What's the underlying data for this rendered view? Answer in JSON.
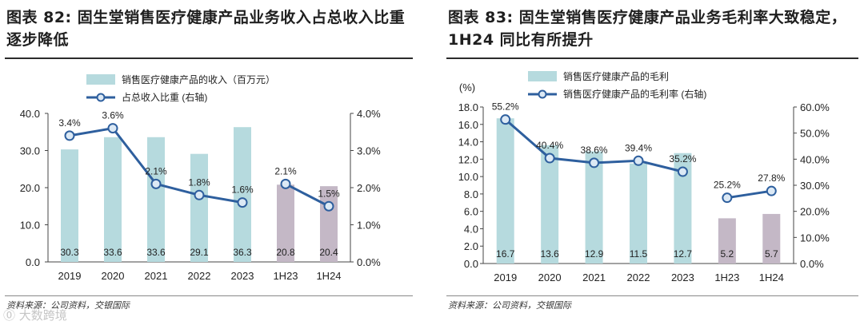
{
  "watermark": "⓪ 大数跨境",
  "chart_data": [
    {
      "type": "bar",
      "title": "图表 82: 固生堂销售医疗健康产品业务收入占总收入比重逐步降低",
      "source": "资料来源：公司资料，交银国际",
      "categories": [
        "2019",
        "2020",
        "2021",
        "2022",
        "2023",
        "1H23",
        "1H24"
      ],
      "series": [
        {
          "name": "销售医疗健康产品的收入（百万元）",
          "kind": "bar",
          "axis": "left",
          "values": [
            30.3,
            33.6,
            33.6,
            29.1,
            36.3,
            20.8,
            20.4
          ],
          "value_labels": [
            "30.3",
            "33.6",
            "33.6",
            "29.1",
            "36.3",
            "20.8",
            "20.4"
          ]
        },
        {
          "name": "占总收入比重 (右轴)",
          "kind": "line",
          "axis": "right",
          "values": [
            3.4,
            3.6,
            2.1,
            1.8,
            1.6,
            2.1,
            1.5
          ],
          "value_labels": [
            "3.4%",
            "3.6%",
            "2.1%",
            "1.8%",
            "1.6%",
            "2.1%",
            "1.5%"
          ],
          "segments": [
            [
              0,
              4
            ],
            [
              5,
              6
            ]
          ]
        }
      ],
      "left_axis": {
        "min": 0,
        "max": 40,
        "ticks": [
          "0.0",
          "10.0",
          "20.0",
          "30.0",
          "40.0"
        ],
        "unit_label": ""
      },
      "right_axis": {
        "min": 0,
        "max": 4,
        "ticks": [
          "0.0%",
          "1.0%",
          "2.0%",
          "3.0%",
          "4.0%"
        ]
      },
      "colors": {
        "bar": "#b6dade",
        "bar_half": "#c4b8c6",
        "line": "#2e5f9e",
        "marker_fill": "#dce9f5"
      }
    },
    {
      "type": "bar",
      "title": "图表 83: 固生堂销售医疗健康产品业务毛利率大致稳定，1H24 同比有所提升",
      "source": "资料来源：公司资料，交银国际",
      "categories": [
        "2019",
        "2020",
        "2021",
        "2022",
        "2023",
        "1H23",
        "1H24"
      ],
      "series": [
        {
          "name": "销售医疗健康产品的毛利",
          "kind": "bar",
          "axis": "left",
          "values": [
            16.7,
            13.6,
            12.9,
            11.5,
            12.7,
            5.2,
            5.7
          ],
          "value_labels": [
            "16.7",
            "13.6",
            "12.9",
            "11.5",
            "12.7",
            "5.2",
            "5.7"
          ]
        },
        {
          "name": "销售医疗健康产品的毛利率 (右轴)",
          "kind": "line",
          "axis": "right",
          "values": [
            55.2,
            40.4,
            38.6,
            39.4,
            35.2,
            25.2,
            27.8
          ],
          "value_labels": [
            "55.2%",
            "40.4%",
            "38.6%",
            "39.4%",
            "35.2%",
            "25.2%",
            "27.8%"
          ],
          "segments": [
            [
              0,
              4
            ],
            [
              5,
              6
            ]
          ]
        }
      ],
      "left_axis": {
        "min": 0,
        "max": 18,
        "ticks": [
          "0.0",
          "2.0",
          "4.0",
          "6.0",
          "8.0",
          "10.0",
          "12.0",
          "14.0",
          "16.0",
          "18.0"
        ],
        "unit_label": "(%)"
      },
      "right_axis": {
        "min": 0,
        "max": 60,
        "ticks": [
          "0.0%",
          "10.0%",
          "20.0%",
          "30.0%",
          "40.0%",
          "50.0%",
          "60.0%"
        ]
      },
      "colors": {
        "bar": "#b6dade",
        "bar_half": "#c4b8c6",
        "line": "#2e5f9e",
        "marker_fill": "#dce9f5"
      }
    }
  ]
}
